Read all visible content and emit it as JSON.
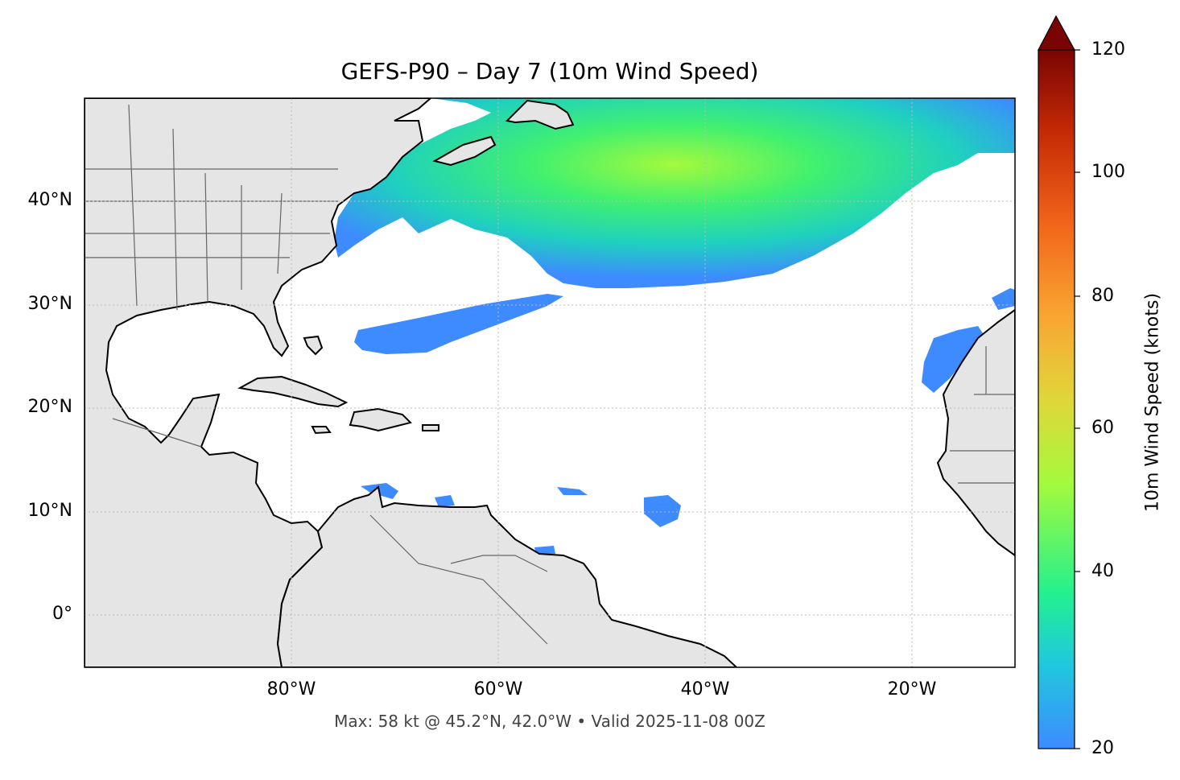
{
  "map": {
    "title": "GEFS-P90 – Day 7 (10m Wind Speed)",
    "footer": "Max: 58 kt @ 45.2°N, 42.0°W • Valid 2025-11-08 00Z",
    "lat_labels": [
      "40°N",
      "30°N",
      "20°N",
      "10°N",
      "0°"
    ],
    "lon_labels": [
      "80°W",
      "60°W",
      "40°W",
      "20°W"
    ],
    "extent": {
      "lon_min": -100,
      "lon_max": -10,
      "lat_min": -5,
      "lat_max": 50
    }
  },
  "colorbar": {
    "title": "10m Wind Speed (knots)",
    "ticks": [
      "120",
      "100",
      "80",
      "60",
      "40",
      "20"
    ],
    "range": [
      20,
      120
    ],
    "extend": "max",
    "colors": [
      "#3d8bff",
      "#1fc8de",
      "#22f090",
      "#a4fa3c",
      "#e0d63a",
      "#f9a532",
      "#f2651a",
      "#c62b05",
      "#7a0403"
    ]
  },
  "colors": {
    "land": "#e5e5e5",
    "coast": "#000000",
    "borders": "#666666",
    "grid": "#bbbbbb"
  }
}
